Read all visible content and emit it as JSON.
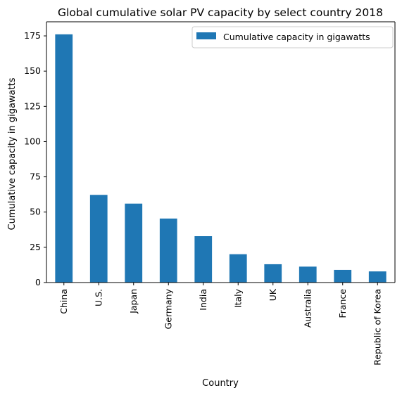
{
  "chart_data": {
    "type": "bar",
    "title": "Global cumulative solar PV capacity by select country 2018",
    "xlabel": "Country",
    "ylabel": "Cumulative capacity in gigawatts",
    "categories": [
      "China",
      "U.S.",
      "Japan",
      "Germany",
      "India",
      "Italy",
      "UK",
      "Australia",
      "France",
      "Republic of Korea"
    ],
    "series": [
      {
        "name": "Cumulative capacity in gigawatts",
        "values": [
          176.1,
          62.2,
          56,
          45.4,
          32.9,
          20.1,
          13,
          11.3,
          9,
          7.9
        ],
        "color": "#1f77b4"
      }
    ],
    "ylim": [
      0,
      185
    ],
    "yticks": [
      0,
      25,
      50,
      75,
      100,
      125,
      150,
      175
    ],
    "grid": false,
    "legend_position": "top-right"
  }
}
